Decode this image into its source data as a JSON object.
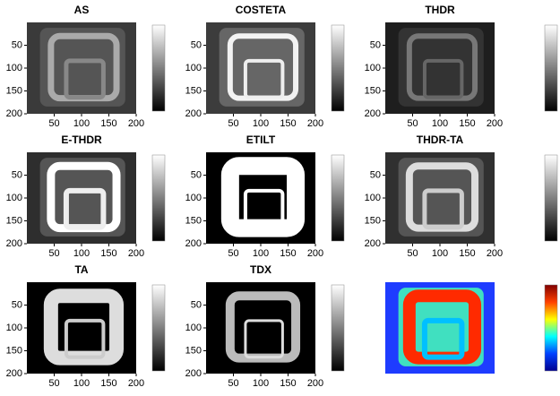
{
  "chart_data": [
    {
      "type": "image",
      "title": "AS",
      "colormap": "gray",
      "xlim": [
        0,
        200
      ],
      "ylim": [
        0,
        200
      ],
      "xticks": [
        50,
        100,
        150,
        200
      ],
      "yticks": [
        50,
        100,
        150,
        200
      ]
    },
    {
      "type": "image",
      "title": "COSTETA",
      "colormap": "gray",
      "xlim": [
        0,
        200
      ],
      "ylim": [
        0,
        200
      ],
      "xticks": [
        50,
        100,
        150,
        200
      ],
      "yticks": [
        50,
        100,
        150,
        200
      ]
    },
    {
      "type": "image",
      "title": "THDR",
      "colormap": "gray",
      "xlim": [
        0,
        200
      ],
      "ylim": [
        0,
        200
      ],
      "xticks": [
        50,
        100,
        150,
        200
      ],
      "yticks": [
        50,
        100,
        150,
        200
      ]
    },
    {
      "type": "image",
      "title": "E-THDR",
      "colormap": "gray",
      "xlim": [
        0,
        200
      ],
      "ylim": [
        0,
        200
      ],
      "xticks": [
        50,
        100,
        150,
        200
      ],
      "yticks": [
        50,
        100,
        150,
        200
      ]
    },
    {
      "type": "image",
      "title": "ETILT",
      "colormap": "gray",
      "xlim": [
        0,
        200
      ],
      "ylim": [
        0,
        200
      ],
      "xticks": [
        50,
        100,
        150,
        200
      ],
      "yticks": [
        50,
        100,
        150,
        200
      ]
    },
    {
      "type": "image",
      "title": "THDR-TA",
      "colormap": "gray",
      "xlim": [
        0,
        200
      ],
      "ylim": [
        0,
        200
      ],
      "xticks": [
        50,
        100,
        150,
        200
      ],
      "yticks": [
        50,
        100,
        150,
        200
      ]
    },
    {
      "type": "image",
      "title": "TA",
      "colormap": "gray",
      "xlim": [
        0,
        200
      ],
      "ylim": [
        0,
        200
      ],
      "xticks": [
        50,
        100,
        150,
        200
      ],
      "yticks": [
        50,
        100,
        150,
        200
      ]
    },
    {
      "type": "image",
      "title": "TDX",
      "colormap": "gray",
      "xlim": [
        0,
        200
      ],
      "ylim": [
        0,
        200
      ],
      "xticks": [
        50,
        100,
        150,
        200
      ],
      "yticks": [
        50,
        100,
        150,
        200
      ]
    },
    {
      "type": "image",
      "colormap": "jet"
    }
  ]
}
